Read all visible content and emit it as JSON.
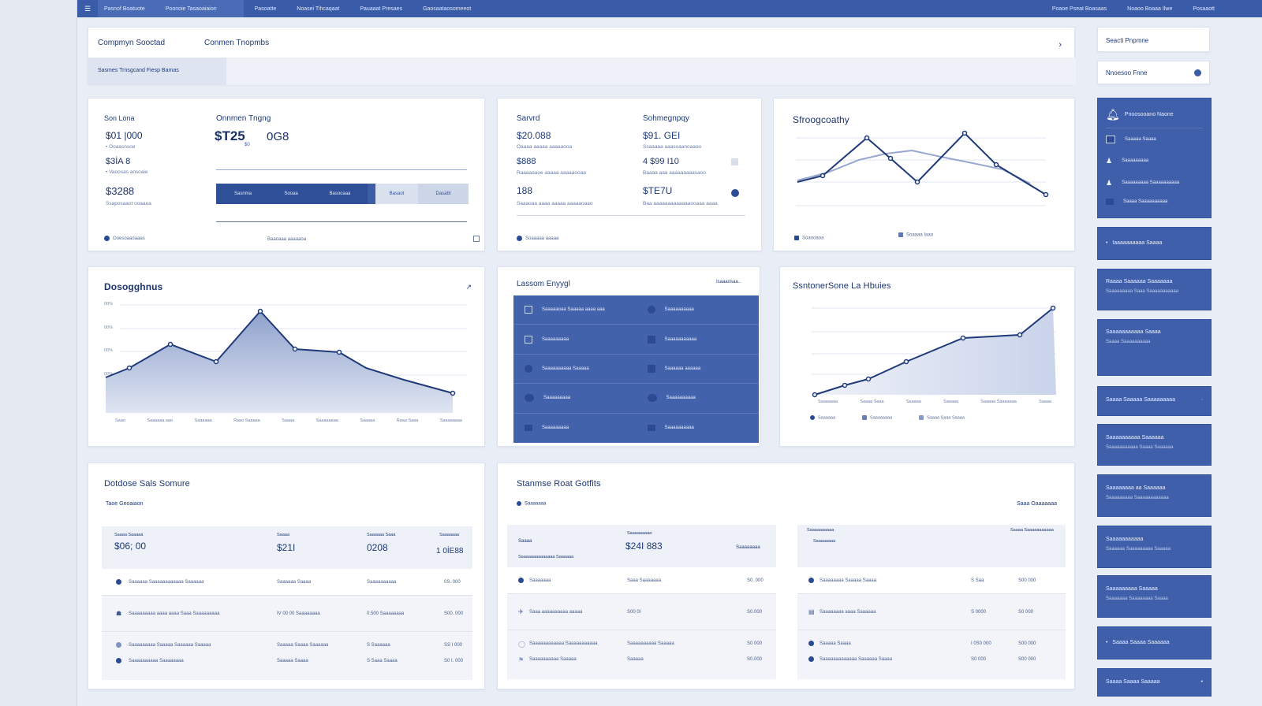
{
  "topnav": {
    "items": [
      "Pasnof Boatuote",
      "Poonoie Tasaoaiaion",
      "Pasoatte",
      "Noasei Tihcaqaat",
      "Pauaaat Presaes",
      "Gaosaataosomeeot"
    ],
    "right": [
      "Poaoe Pseat Boasaas",
      "Noaoo Boaaa Ilwe",
      "Posaaott"
    ]
  },
  "header": {
    "tab1": "Compmyn Sooctad",
    "tab2": "Conmen Tnopmbs",
    "subtab": "Sasmes Trnsgcand Fiesp Bamas"
  },
  "kpi1": {
    "leftLabel": "Son Lona",
    "v1": "$01 |000",
    "s1": "• Ooaasnsoe",
    "v2": "$3İA 8",
    "s2": "• Vaoosas ansoaie",
    "v3": "$3288",
    "s3": "Ssaposaaot ooaaoa",
    "rightLabel": "Onnmen Tngng",
    "big1": "$T25",
    "big2": "0G8",
    "tag": "$0",
    "seg": [
      "Sasnma",
      "Sooaa",
      "Basooaaa",
      "Basaot",
      "Dasabt"
    ],
    "foot1": "Ooesoaaoaaas",
    "foot2": "Baaoaaa aaaaaoa"
  },
  "kpi2": {
    "c1": "Sarvrd",
    "c2": "Sohmegnpqy",
    "r1a": "$20.088",
    "r1b": "$91. GEI",
    "s1a": "Oaaaa aaaaa aaaaaooa",
    "s1b": "Ssaaaaa aaasoaanoaaoo",
    "r2a": "$888",
    "r2b": "4 $99 I10",
    "s2a": "Raaaaaaoe aaaaa aaaaaooaa",
    "s2b": "Baaaa aaa aaaaaaaaasaoo",
    "r3a": "188",
    "r3b": "$TE7U",
    "s3a": "Saaaoaa aaaa aaaaa aaaaaoaao",
    "s3b": "Baa aaaaaaaaaaaaaooaaa aaaa",
    "foot": "Soaaaaa aaaaa"
  },
  "chart1": {
    "title": "Sfroogcoathy",
    "legend1": "Soaooaoa",
    "legend2": "Soaaaa Iaao"
  },
  "chart2": {
    "title": "Dosogghnus",
    "labels": [
      "Saao",
      "Saaaaaa aao",
      "Saaaaaa",
      "Raao Saaaaa",
      "Saaaa",
      "Saaaaaaaa",
      "Saaaaa",
      "Raaa Saaa",
      "Saaaaaaaa"
    ],
    "yticks": [
      "00%",
      "00%",
      "00%",
      "00%"
    ]
  },
  "tiles": {
    "title": "Lassom Enyygl",
    "link": "Isaaaosaa..",
    "items": [
      "Saaaaaoaa Saaaaa aaaa aaa",
      "Saaaaaaaaaa",
      "Saaaaaaaaa",
      "Saaaaaaaaaaa",
      "Saaaaaaaaaa Saaaaa",
      "Saaaaaa aaaaaa",
      "Saaaaaaaaa",
      "Saaaaaaaaaa",
      "Saaaaaaaaa",
      "Saaaaaaaaaa"
    ]
  },
  "chart3": {
    "title": "SsntonerSone La Hbuies",
    "labels": [
      "Saaaaaaa",
      "Saaaa Saaa",
      "Saaaaa",
      "Saaaaa",
      "Saaaaa Saaaaaaa",
      "Saaaa"
    ],
    "legend": [
      "Saaaaaa",
      "Saaaaaaaa",
      "Saaaa Saaa Saaaa"
    ]
  },
  "table1": {
    "title": "Dotdose Sals Somure",
    "sub": "Taoe Geoaiaon",
    "h": [
      "Saaaa Saaaaa",
      "Saaaa",
      "Saaaaaa Saaa",
      "Saaaaaaa"
    ],
    "v": [
      "$06; 00",
      "$21I",
      "0208",
      "1 0İE88"
    ],
    "rows": [
      [
        "Saaaaaa Saaaaaaaaaaaa Saaaaaa",
        "Saaaaaa Saaaa",
        "Saaaaaaaaaa",
        "0S. 000"
      ],
      [
        "Saaaaaaaaa aaaa aaaa Saaa Saaaaaaaaa",
        "IV 00 00 Saaaaaaaa",
        "0.500 Saaaaaaaa",
        "S00. 000"
      ],
      [
        "Saaaaaaaaa Saaaaa Saaaaaa Saaaaa",
        "Saaaaa Saaaa Saaaaaa",
        "S Saaaaaa",
        "SS I 000"
      ],
      [
        "Saaaaaaaaaa Saaaaaaaa",
        "Saaaaa Saaaa",
        "S Saaa Saaaa",
        "S0 I. 000"
      ]
    ]
  },
  "table2": {
    "title": "Stanmse Roat Gotfits",
    "sub": "Saaaaaaa",
    "right": "Saaa Oaaaaaaa",
    "h1": "Saaaa",
    "h2": "Saaaaaaaaa",
    "v2": "$24I 883",
    "h3": "Saaaaaaaa",
    "sub1": "Saaaaaaaaaaaaaa Saaaaaa",
    "rowsL": [
      [
        "Saaaaaaa",
        "Saaa Saaaaaaa",
        "S0. 000"
      ],
      [
        "Saaa aaaaaaaaaa aaaaa",
        "S00 0I",
        "S0.000"
      ],
      [
        "Saaaaaaaaaaaa Saaaaaaaaaaa",
        "Saaaaaaaaaa Saaaaa",
        "S0 000"
      ],
      [
        "Saaaaaaaaaa Saaaaa",
        "Saaaaa",
        "S0.000"
      ]
    ],
    "rh": [
      "Saaaaaaaaaa",
      "Saaaaaaaa",
      "Saaaa Saaaaaaaaaaa"
    ],
    "rowsR": [
      [
        "Saaaaaaaa Saaaaa Saaaa",
        "S Saa",
        "S00 000"
      ],
      [
        "Saaaaaaaa aaaa Saaaaaa",
        "S 0000",
        "S0 000"
      ],
      [
        "Saaaaa Saaaa",
        "I 0S0 000",
        "S00 000"
      ],
      [
        "Saaaaaaaaaaaaa Saaaaaa Saaaa",
        "S0 000",
        "S00 000"
      ]
    ]
  },
  "rightpanel": {
    "search": "Seacti Pnpmne",
    "filter": "Nnoesoo Fnne",
    "hero": "Pnoosooano Naone",
    "heroItems": [
      "Saaaaa Saaaa",
      "Saaaaaaaaa",
      "Saaaaaaaaa Saaaaaaaaaa",
      "Saaaa Saaaaaaaaaa"
    ],
    "cards": [
      [
        "Iaaaaaaaaaa Saaaa",
        ""
      ],
      [
        "Raaaa Saaaaaa Saaaaaaa",
        "Saaaaaaaaa Saaa Saaaaaaaaaaa"
      ],
      [
        "Saaaaaaaaaaa Saaaa",
        "Saaaa Saaaaaaaaaa"
      ],
      [
        "Saaaa Saaaaa Saaaaaaaaa",
        ""
      ],
      [
        "Saaaaaaaaaa Saaaaaa",
        "Saaaaaaaaaaa Saaaa Saaaaaa"
      ],
      [
        "Saaaaaaaa aa Saaaaaa",
        "Saaaaaaaaa Saaaaaaaaaaaa"
      ],
      [
        "Saaaaaaaaaaa",
        "Saaaaaa Saaaaaaaaa Saaaaa"
      ],
      [
        "Saaaaaaaaa Saaaaa",
        "Saaaaaaa Saaaaaaaa Saaaa"
      ],
      [
        "Saaaa Saaaa Saaaaaa",
        ""
      ],
      [
        "Saaaa Saaaa Saaaaa",
        ""
      ]
    ]
  }
}
